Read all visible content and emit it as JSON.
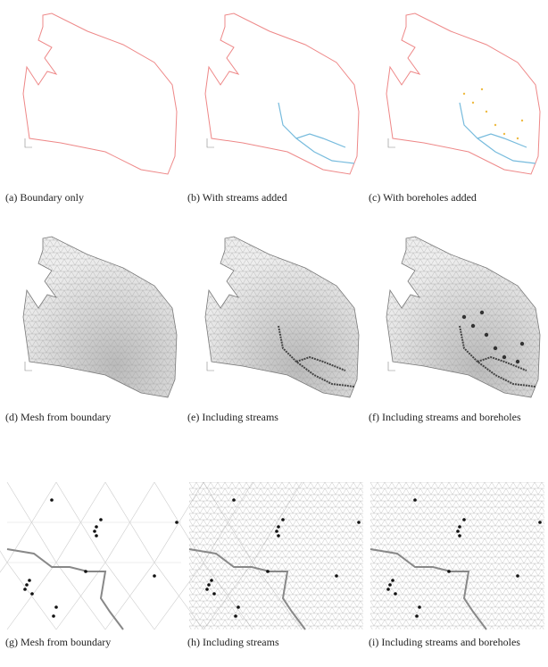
{
  "figure": {
    "panels": [
      {
        "caption": "(a) Boundary only"
      },
      {
        "caption": "(b) With streams added"
      },
      {
        "caption": "(c) With boreholes added"
      },
      {
        "caption": "(d) Mesh from boundary"
      },
      {
        "caption": "(e) Including streams"
      },
      {
        "caption": "(f) Including streams and boreholes"
      },
      {
        "caption": "(g) Mesh from boundary"
      },
      {
        "caption": "(h) Including streams"
      },
      {
        "caption": "(i) Including streams and boreholes"
      }
    ]
  }
}
